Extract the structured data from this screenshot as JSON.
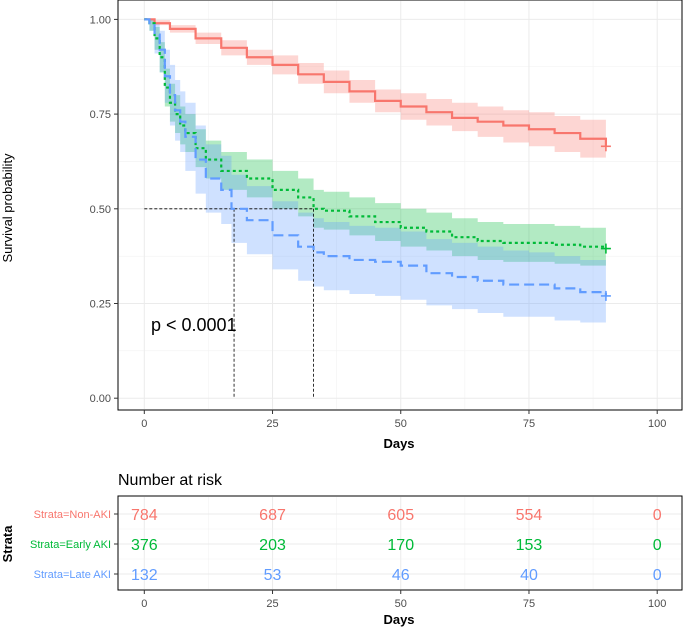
{
  "chart_data": {
    "type": "kaplan-meier",
    "ylabel": "Survival probability",
    "xlabel": "Days",
    "xlim": [
      0,
      100
    ],
    "ylim": [
      0,
      1
    ],
    "x_ticks": [
      0,
      25,
      50,
      75,
      100
    ],
    "x_tick_labels": [
      "0",
      "25",
      "50",
      "75",
      "100"
    ],
    "y_ticks": [
      0,
      0.25,
      0.5,
      0.75,
      1.0
    ],
    "y_tick_labels": [
      "0.00",
      "0.25",
      "0.50",
      "0.75",
      "1.00"
    ],
    "pvalue_text": "p < 0.0001",
    "median_line_y": 0.5,
    "series": [
      {
        "name": "Strata=Non-AKI",
        "color": "#F8766D",
        "fill_color": "#F8766D",
        "line_style": "solid",
        "points": [
          [
            0,
            1.0
          ],
          [
            2,
            0.99
          ],
          [
            5,
            0.975
          ],
          [
            10,
            0.95
          ],
          [
            15,
            0.925
          ],
          [
            20,
            0.9
          ],
          [
            25,
            0.88
          ],
          [
            30,
            0.855
          ],
          [
            35,
            0.835
          ],
          [
            40,
            0.81
          ],
          [
            45,
            0.785
          ],
          [
            50,
            0.77
          ],
          [
            55,
            0.755
          ],
          [
            60,
            0.74
          ],
          [
            65,
            0.73
          ],
          [
            70,
            0.72
          ],
          [
            75,
            0.71
          ],
          [
            80,
            0.7
          ],
          [
            85,
            0.685
          ],
          [
            90,
            0.665
          ]
        ],
        "lower": [
          [
            0,
            1.0
          ],
          [
            2,
            0.985
          ],
          [
            5,
            0.965
          ],
          [
            10,
            0.935
          ],
          [
            15,
            0.905
          ],
          [
            20,
            0.88
          ],
          [
            25,
            0.855
          ],
          [
            30,
            0.83
          ],
          [
            35,
            0.805
          ],
          [
            40,
            0.78
          ],
          [
            45,
            0.755
          ],
          [
            50,
            0.735
          ],
          [
            55,
            0.72
          ],
          [
            60,
            0.705
          ],
          [
            65,
            0.69
          ],
          [
            70,
            0.675
          ],
          [
            75,
            0.665
          ],
          [
            80,
            0.65
          ],
          [
            85,
            0.635
          ],
          [
            90,
            0.615
          ]
        ],
        "upper": [
          [
            0,
            1.0
          ],
          [
            2,
            0.998
          ],
          [
            5,
            0.985
          ],
          [
            10,
            0.965
          ],
          [
            15,
            0.945
          ],
          [
            20,
            0.92
          ],
          [
            25,
            0.905
          ],
          [
            30,
            0.885
          ],
          [
            35,
            0.865
          ],
          [
            40,
            0.84
          ],
          [
            45,
            0.815
          ],
          [
            50,
            0.805
          ],
          [
            55,
            0.79
          ],
          [
            60,
            0.78
          ],
          [
            65,
            0.77
          ],
          [
            70,
            0.76
          ],
          [
            75,
            0.755
          ],
          [
            80,
            0.745
          ],
          [
            85,
            0.735
          ],
          [
            90,
            0.72
          ]
        ],
        "censor_end": [
          90,
          0.665
        ]
      },
      {
        "name": "Strata=Early AKI",
        "color": "#00BA38",
        "fill_color": "#00BA38",
        "line_style": "dotted",
        "points": [
          [
            0,
            1.0
          ],
          [
            1,
            0.99
          ],
          [
            2,
            0.95
          ],
          [
            3,
            0.9
          ],
          [
            4,
            0.82
          ],
          [
            5,
            0.78
          ],
          [
            6,
            0.75
          ],
          [
            7,
            0.72
          ],
          [
            8,
            0.7
          ],
          [
            10,
            0.66
          ],
          [
            12,
            0.63
          ],
          [
            15,
            0.6
          ],
          [
            20,
            0.58
          ],
          [
            25,
            0.55
          ],
          [
            30,
            0.53
          ],
          [
            33,
            0.5
          ],
          [
            35,
            0.495
          ],
          [
            40,
            0.48
          ],
          [
            45,
            0.465
          ],
          [
            50,
            0.45
          ],
          [
            55,
            0.44
          ],
          [
            60,
            0.425
          ],
          [
            65,
            0.415
          ],
          [
            70,
            0.41
          ],
          [
            75,
            0.41
          ],
          [
            80,
            0.405
          ],
          [
            85,
            0.4
          ],
          [
            90,
            0.395
          ]
        ],
        "lower": [
          [
            0,
            1.0
          ],
          [
            1,
            0.97
          ],
          [
            2,
            0.92
          ],
          [
            3,
            0.86
          ],
          [
            4,
            0.77
          ],
          [
            5,
            0.73
          ],
          [
            6,
            0.7
          ],
          [
            7,
            0.67
          ],
          [
            8,
            0.65
          ],
          [
            10,
            0.61
          ],
          [
            12,
            0.58
          ],
          [
            15,
            0.55
          ],
          [
            20,
            0.53
          ],
          [
            25,
            0.5
          ],
          [
            30,
            0.48
          ],
          [
            33,
            0.45
          ],
          [
            35,
            0.445
          ],
          [
            40,
            0.43
          ],
          [
            45,
            0.415
          ],
          [
            50,
            0.4
          ],
          [
            55,
            0.39
          ],
          [
            60,
            0.375
          ],
          [
            65,
            0.365
          ],
          [
            70,
            0.36
          ],
          [
            75,
            0.36
          ],
          [
            80,
            0.355
          ],
          [
            85,
            0.35
          ],
          [
            90,
            0.345
          ]
        ],
        "upper": [
          [
            0,
            1.0
          ],
          [
            1,
            1.0
          ],
          [
            2,
            0.98
          ],
          [
            3,
            0.94
          ],
          [
            4,
            0.87
          ],
          [
            5,
            0.83
          ],
          [
            6,
            0.8
          ],
          [
            7,
            0.77
          ],
          [
            8,
            0.75
          ],
          [
            10,
            0.71
          ],
          [
            12,
            0.68
          ],
          [
            15,
            0.65
          ],
          [
            20,
            0.63
          ],
          [
            25,
            0.6
          ],
          [
            30,
            0.58
          ],
          [
            33,
            0.55
          ],
          [
            35,
            0.545
          ],
          [
            40,
            0.53
          ],
          [
            45,
            0.515
          ],
          [
            50,
            0.5
          ],
          [
            55,
            0.49
          ],
          [
            60,
            0.475
          ],
          [
            65,
            0.465
          ],
          [
            70,
            0.46
          ],
          [
            75,
            0.46
          ],
          [
            80,
            0.455
          ],
          [
            85,
            0.45
          ],
          [
            90,
            0.445
          ]
        ],
        "censor_end": [
          90,
          0.395
        ]
      },
      {
        "name": "Strata=Late AKI",
        "color": "#619CFF",
        "fill_color": "#619CFF",
        "line_style": "dashed",
        "points": [
          [
            0,
            1.0
          ],
          [
            1,
            0.99
          ],
          [
            2,
            0.96
          ],
          [
            3,
            0.92
          ],
          [
            4,
            0.85
          ],
          [
            5,
            0.8
          ],
          [
            6,
            0.76
          ],
          [
            7,
            0.73
          ],
          [
            8,
            0.69
          ],
          [
            10,
            0.63
          ],
          [
            12,
            0.58
          ],
          [
            15,
            0.55
          ],
          [
            17,
            0.5
          ],
          [
            20,
            0.47
          ],
          [
            25,
            0.43
          ],
          [
            30,
            0.4
          ],
          [
            33,
            0.385
          ],
          [
            35,
            0.375
          ],
          [
            40,
            0.365
          ],
          [
            45,
            0.36
          ],
          [
            50,
            0.35
          ],
          [
            55,
            0.33
          ],
          [
            60,
            0.32
          ],
          [
            65,
            0.31
          ],
          [
            70,
            0.3
          ],
          [
            75,
            0.3
          ],
          [
            80,
            0.29
          ],
          [
            85,
            0.28
          ],
          [
            90,
            0.27
          ]
        ],
        "lower": [
          [
            0,
            1.0
          ],
          [
            1,
            0.97
          ],
          [
            2,
            0.91
          ],
          [
            3,
            0.86
          ],
          [
            4,
            0.78
          ],
          [
            5,
            0.72
          ],
          [
            6,
            0.68
          ],
          [
            7,
            0.65
          ],
          [
            8,
            0.6
          ],
          [
            10,
            0.54
          ],
          [
            12,
            0.49
          ],
          [
            15,
            0.46
          ],
          [
            17,
            0.41
          ],
          [
            20,
            0.38
          ],
          [
            25,
            0.34
          ],
          [
            30,
            0.31
          ],
          [
            33,
            0.295
          ],
          [
            35,
            0.285
          ],
          [
            40,
            0.275
          ],
          [
            45,
            0.27
          ],
          [
            50,
            0.26
          ],
          [
            55,
            0.245
          ],
          [
            60,
            0.235
          ],
          [
            65,
            0.225
          ],
          [
            70,
            0.215
          ],
          [
            75,
            0.215
          ],
          [
            80,
            0.205
          ],
          [
            85,
            0.2
          ],
          [
            90,
            0.19
          ]
        ],
        "upper": [
          [
            0,
            1.0
          ],
          [
            1,
            1.0
          ],
          [
            2,
            0.99
          ],
          [
            3,
            0.97
          ],
          [
            4,
            0.92
          ],
          [
            5,
            0.88
          ],
          [
            6,
            0.84
          ],
          [
            7,
            0.81
          ],
          [
            8,
            0.78
          ],
          [
            10,
            0.72
          ],
          [
            12,
            0.67
          ],
          [
            15,
            0.64
          ],
          [
            17,
            0.59
          ],
          [
            20,
            0.56
          ],
          [
            25,
            0.52
          ],
          [
            30,
            0.49
          ],
          [
            33,
            0.475
          ],
          [
            35,
            0.465
          ],
          [
            40,
            0.455
          ],
          [
            45,
            0.45
          ],
          [
            50,
            0.44
          ],
          [
            55,
            0.42
          ],
          [
            60,
            0.41
          ],
          [
            65,
            0.4
          ],
          [
            70,
            0.39
          ],
          [
            75,
            0.385
          ],
          [
            80,
            0.375
          ],
          [
            85,
            0.365
          ],
          [
            90,
            0.355
          ]
        ],
        "censor_end": [
          90,
          0.27
        ]
      }
    ],
    "medians": [
      {
        "strata": "Strata=Late AKI",
        "x": 17.5
      },
      {
        "strata": "Strata=Early AKI",
        "x": 33
      }
    ],
    "risk_table": {
      "title": "Number at risk",
      "ylabel": "Strata",
      "xlabel": "Days",
      "times": [
        0,
        25,
        50,
        75,
        100
      ],
      "time_labels": [
        "0",
        "25",
        "50",
        "75",
        "100"
      ],
      "rows": [
        {
          "label": "Strata=Non-AKI",
          "color": "#F8766D",
          "values": [
            "784",
            "687",
            "605",
            "554",
            "0"
          ]
        },
        {
          "label": "Strata=Early AKI",
          "color": "#00BA38",
          "values": [
            "376",
            "203",
            "170",
            "153",
            "0"
          ]
        },
        {
          "label": "Strata=Late AKI",
          "color": "#619CFF",
          "values": [
            "132",
            "53",
            "46",
            "40",
            "0"
          ]
        }
      ]
    }
  }
}
